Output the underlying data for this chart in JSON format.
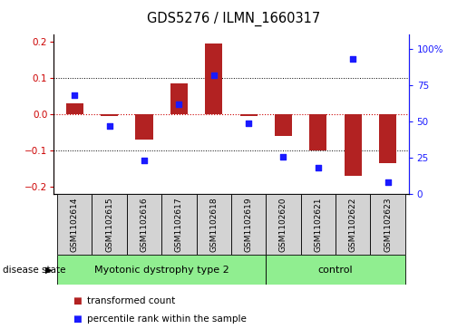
{
  "title": "GDS5276 / ILMN_1660317",
  "samples": [
    "GSM1102614",
    "GSM1102615",
    "GSM1102616",
    "GSM1102617",
    "GSM1102618",
    "GSM1102619",
    "GSM1102620",
    "GSM1102621",
    "GSM1102622",
    "GSM1102623"
  ],
  "red_values": [
    0.03,
    -0.005,
    -0.07,
    0.085,
    0.195,
    -0.005,
    -0.06,
    -0.1,
    -0.17,
    -0.135
  ],
  "blue_values_pct": [
    68,
    47,
    23,
    62,
    82,
    49,
    26,
    18,
    93,
    8
  ],
  "ylim_left": [
    -0.22,
    0.22
  ],
  "ylim_right": [
    0,
    110
  ],
  "yticks_left": [
    -0.2,
    -0.1,
    0.0,
    0.1,
    0.2
  ],
  "yticks_right": [
    0,
    25,
    50,
    75,
    100
  ],
  "ytick_labels_right": [
    "0",
    "25",
    "50",
    "75",
    "100%"
  ],
  "group1_label": "Myotonic dystrophy type 2",
  "group2_label": "control",
  "group1_count": 6,
  "group2_count": 4,
  "disease_state_label": "disease state",
  "legend_red": "transformed count",
  "legend_blue": "percentile rank within the sample",
  "bar_color": "#b22222",
  "dot_color": "#1a1aff",
  "bar_width": 0.5,
  "group1_color": "#90ee90",
  "group2_color": "#90ee90",
  "zero_line_color": "#cc0000",
  "label_area_color": "#d3d3d3"
}
